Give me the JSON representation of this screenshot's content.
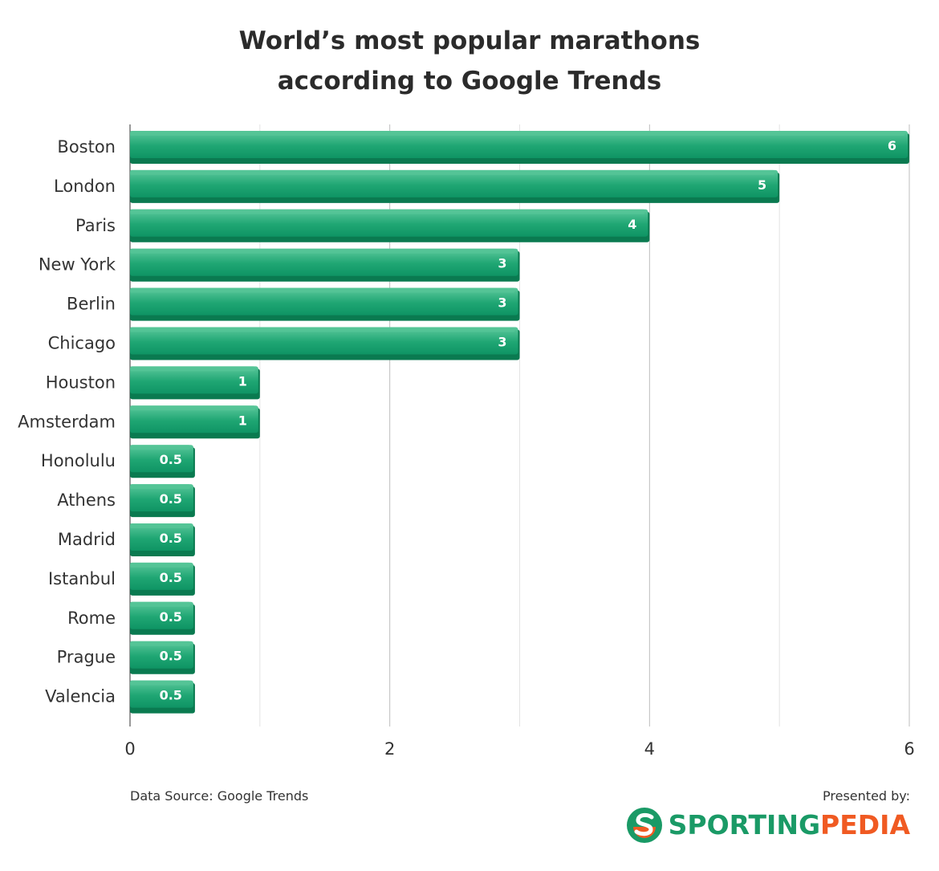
{
  "title_line1": "World’s most popular marathons",
  "title_line2": "according to Google Trends",
  "chart_data": {
    "type": "bar",
    "orientation": "horizontal",
    "categories": [
      "Boston",
      "London",
      "Paris",
      "New York",
      "Berlin",
      "Chicago",
      "Houston",
      "Amsterdam",
      "Honolulu",
      "Athens",
      "Madrid",
      "Istanbul",
      "Rome",
      "Prague",
      "Valencia"
    ],
    "values": [
      6,
      5,
      4,
      3,
      3,
      3,
      1,
      1,
      0.5,
      0.5,
      0.5,
      0.5,
      0.5,
      0.5,
      0.5
    ],
    "data_labels": [
      "6",
      "5",
      "4",
      "3",
      "3",
      "3",
      "1",
      "1",
      "0.5",
      "0.5",
      "0.5",
      "0.5",
      "0.5",
      "0.5",
      "0.5"
    ],
    "xlim": [
      0,
      6
    ],
    "x_ticks": [
      "0",
      "2",
      "4",
      "6"
    ],
    "grid": true,
    "bar_color": "#129c69",
    "bar_highlight": "#55c497",
    "bar_shadow": "#0a7a50"
  },
  "footer": {
    "source": "Data Source: Google Trends",
    "presented": "Presented by:",
    "logo_part1": "SPORTING",
    "logo_part2": "PEDIA",
    "logo_icon": "sportingpedia-s-icon",
    "green": "#1a9a66",
    "orange": "#f05a22"
  }
}
